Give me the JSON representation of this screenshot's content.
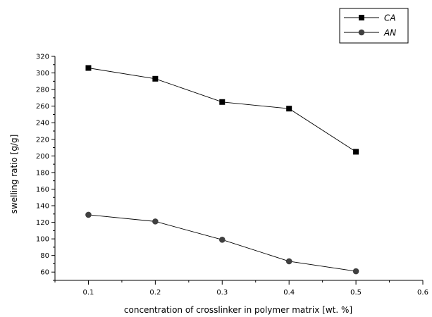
{
  "chart_data": {
    "type": "line",
    "title": "",
    "xlabel": "concentration of crosslinker in polymer matrix [wt. %]",
    "ylabel": "swelling ratio [g/g]",
    "xlim": [
      0.05,
      0.6
    ],
    "ylim": [
      50,
      320
    ],
    "xticks": [
      0.1,
      0.2,
      0.3,
      0.4,
      0.5,
      0.6
    ],
    "yticks": [
      60,
      80,
      100,
      120,
      140,
      160,
      180,
      200,
      220,
      240,
      260,
      280,
      300,
      320
    ],
    "grid": false,
    "legend_position": "top-right",
    "series": [
      {
        "name": "CA",
        "marker": "square",
        "color": "#000000",
        "x": [
          0.1,
          0.2,
          0.3,
          0.4,
          0.5
        ],
        "y": [
          306,
          293,
          265,
          257,
          205
        ]
      },
      {
        "name": "AN",
        "marker": "circle",
        "color": "#404040",
        "x": [
          0.1,
          0.2,
          0.3,
          0.4,
          0.5
        ],
        "y": [
          129,
          121,
          99,
          73,
          61
        ]
      }
    ]
  }
}
